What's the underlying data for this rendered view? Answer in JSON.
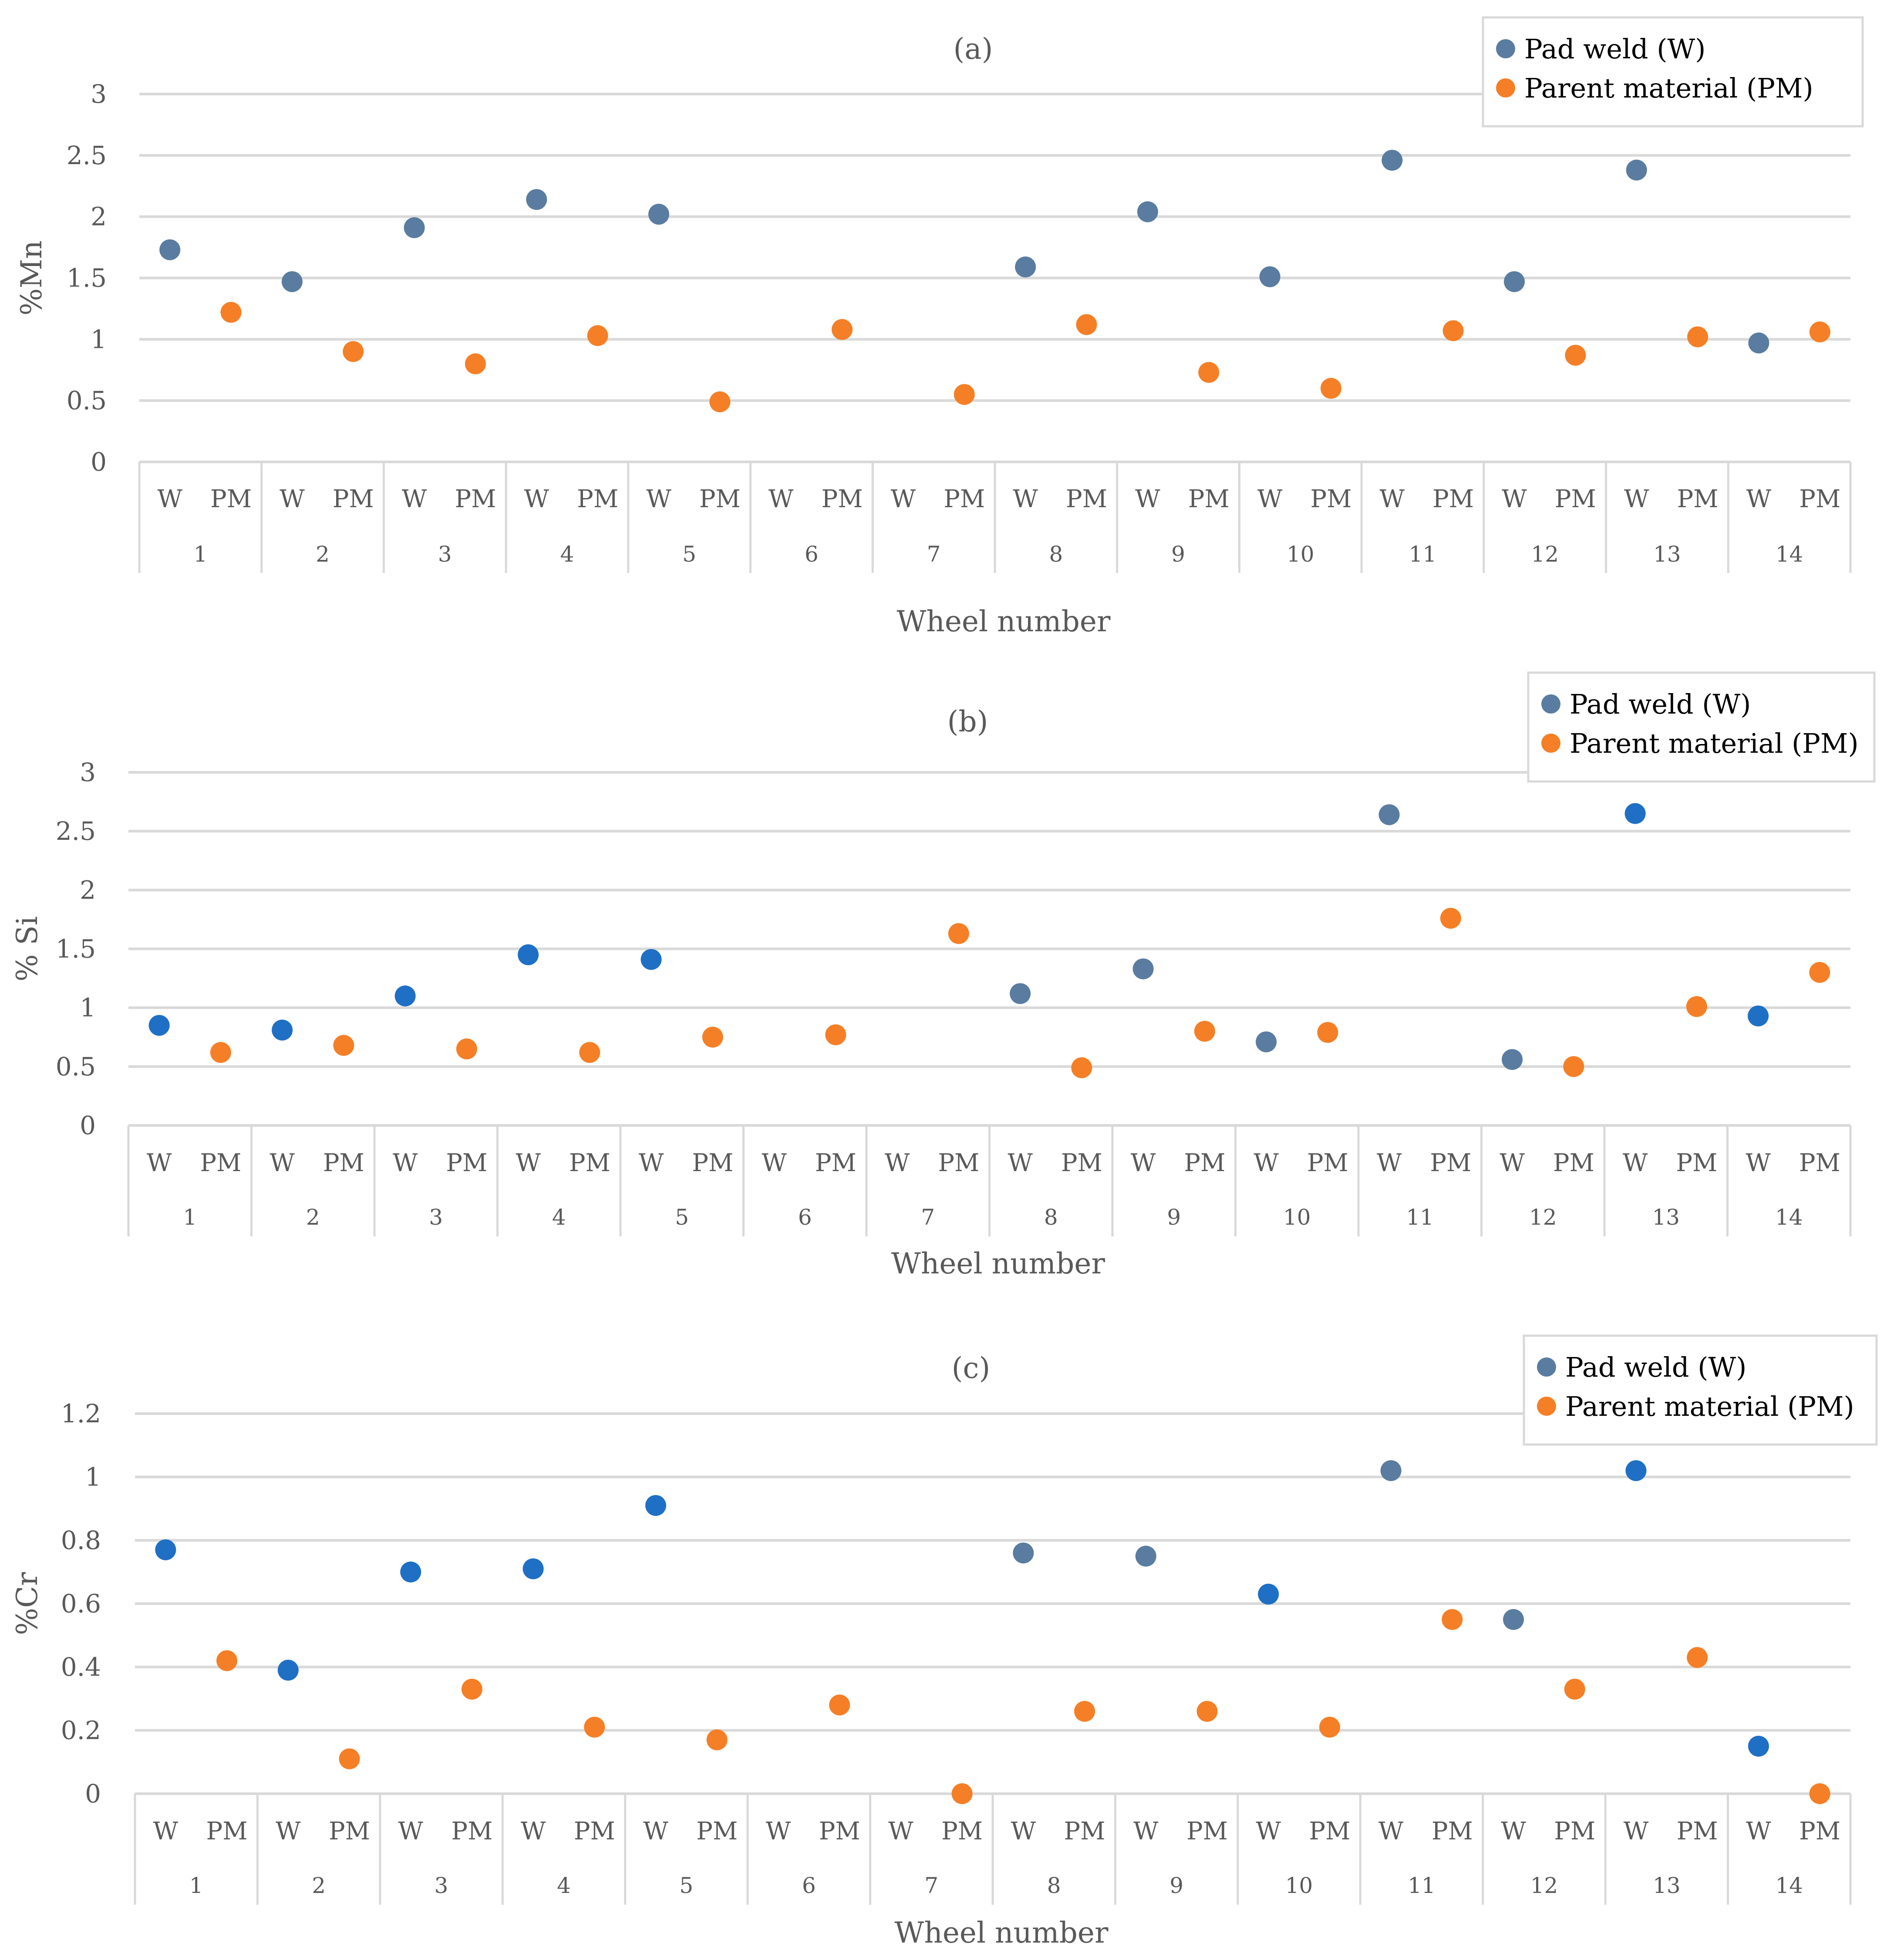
{
  "chart_data": [
    {
      "type": "scatter",
      "title": "(a)",
      "xlabel": "Wheel number",
      "ylabel": "%Mn",
      "ylim": [
        0,
        3
      ],
      "yticks": [
        "0",
        "0.5",
        "1",
        "1.5",
        "2",
        "2.5",
        "3"
      ],
      "categories": [
        "1",
        "2",
        "3",
        "4",
        "5",
        "6",
        "7",
        "8",
        "9",
        "10",
        "11",
        "12",
        "13",
        "14"
      ],
      "subcategories": [
        "W",
        "PM"
      ],
      "legend": [
        "Pad weld (W)",
        "Parent material (PM)"
      ],
      "legend_position": "top-right",
      "series": [
        {
          "name": "Pad weld (W)",
          "color": "#5a7ca0",
          "values": [
            1.73,
            1.47,
            1.91,
            2.14,
            2.02,
            null,
            null,
            1.59,
            2.04,
            1.51,
            2.46,
            1.47,
            2.38,
            0.97
          ]
        },
        {
          "name": "Parent material (PM)",
          "color": "#f57f26",
          "values": [
            1.22,
            0.9,
            0.8,
            1.03,
            0.49,
            1.08,
            0.55,
            1.12,
            0.73,
            0.6,
            1.07,
            0.87,
            1.02,
            1.06
          ]
        }
      ]
    },
    {
      "type": "scatter",
      "title": "(b)",
      "xlabel": "Wheel number",
      "ylabel": "% Si",
      "ylim": [
        0,
        3
      ],
      "yticks": [
        "0",
        "0.5",
        "1",
        "1.5",
        "2",
        "2.5",
        "3"
      ],
      "categories": [
        "1",
        "2",
        "3",
        "4",
        "5",
        "6",
        "7",
        "8",
        "9",
        "10",
        "11",
        "12",
        "13",
        "14"
      ],
      "subcategories": [
        "W",
        "PM"
      ],
      "legend": [
        "Pad weld (W)",
        "Parent material (PM)"
      ],
      "legend_position": "top-right",
      "series": [
        {
          "name": "Pad weld (W)",
          "color": "#5a7ca0",
          "point_colors": [
            "#1f6fc5",
            "#1f6fc5",
            "#1f6fc5",
            "#1f6fc5",
            "#1f6fc5",
            null,
            null,
            "#5a7ca0",
            "#5a7ca0",
            "#5a7ca0",
            "#5a7ca0",
            "#5a7ca0",
            "#1f6fc5",
            "#1f6fc5"
          ],
          "values": [
            0.85,
            0.81,
            1.1,
            1.45,
            1.41,
            null,
            null,
            1.12,
            1.33,
            0.71,
            2.64,
            0.56,
            2.65,
            0.93
          ]
        },
        {
          "name": "Parent material (PM)",
          "color": "#f57f26",
          "values": [
            0.62,
            0.68,
            0.65,
            0.62,
            0.75,
            0.77,
            1.63,
            0.49,
            0.8,
            0.79,
            1.76,
            0.5,
            1.01,
            1.3
          ]
        }
      ]
    },
    {
      "type": "scatter",
      "title": "(c)",
      "xlabel": "Wheel number",
      "ylabel": "%Cr",
      "ylim": [
        0,
        1.2
      ],
      "yticks": [
        "0",
        "0.2",
        "0.4",
        "0.6",
        "0.8",
        "1",
        "1.2"
      ],
      "categories": [
        "1",
        "2",
        "3",
        "4",
        "5",
        "6",
        "7",
        "8",
        "9",
        "10",
        "11",
        "12",
        "13",
        "14"
      ],
      "subcategories": [
        "W",
        "PM"
      ],
      "legend": [
        "Pad weld (W)",
        "Parent material (PM)"
      ],
      "legend_position": "top-right",
      "series": [
        {
          "name": "Pad weld (W)",
          "color": "#5a7ca0",
          "point_colors": [
            "#1f6fc5",
            "#1f6fc5",
            "#1f6fc5",
            "#1f6fc5",
            "#1f6fc5",
            null,
            null,
            "#5a7ca0",
            "#5a7ca0",
            "#1f6fc5",
            "#5a7ca0",
            "#5a7ca0",
            "#1f6fc5",
            "#1f6fc5"
          ],
          "values": [
            0.77,
            0.39,
            0.7,
            0.71,
            0.91,
            null,
            null,
            0.76,
            0.75,
            0.63,
            1.02,
            0.55,
            1.02,
            0.15
          ]
        },
        {
          "name": "Parent material (PM)",
          "color": "#f57f26",
          "values": [
            0.42,
            0.11,
            0.33,
            0.21,
            0.17,
            0.28,
            0.0,
            0.26,
            0.26,
            0.21,
            0.55,
            0.33,
            0.43,
            0.0
          ]
        }
      ]
    }
  ]
}
